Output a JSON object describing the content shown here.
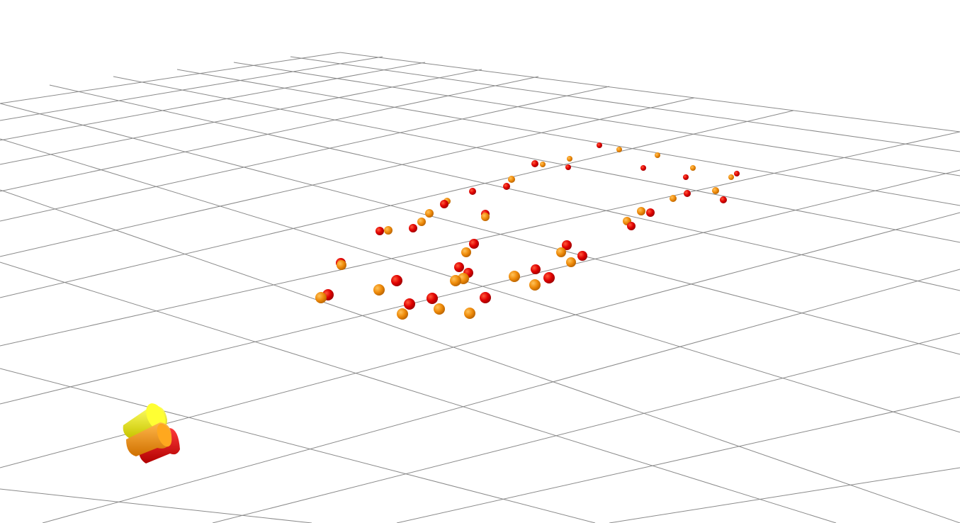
{
  "viewer": {
    "background": "#ffffff",
    "grid_color": "#8a8a8a",
    "grid": "on"
  },
  "landmarks": {
    "red_color": "#e00000",
    "orange_color": "#ef8b0a",
    "red_count": 30,
    "orange_count": 30
  },
  "camera_gizmo": {
    "icon": "camera-frustum-icon",
    "colors": [
      "#f0ef00",
      "#ff9a00",
      "#e00000"
    ]
  }
}
